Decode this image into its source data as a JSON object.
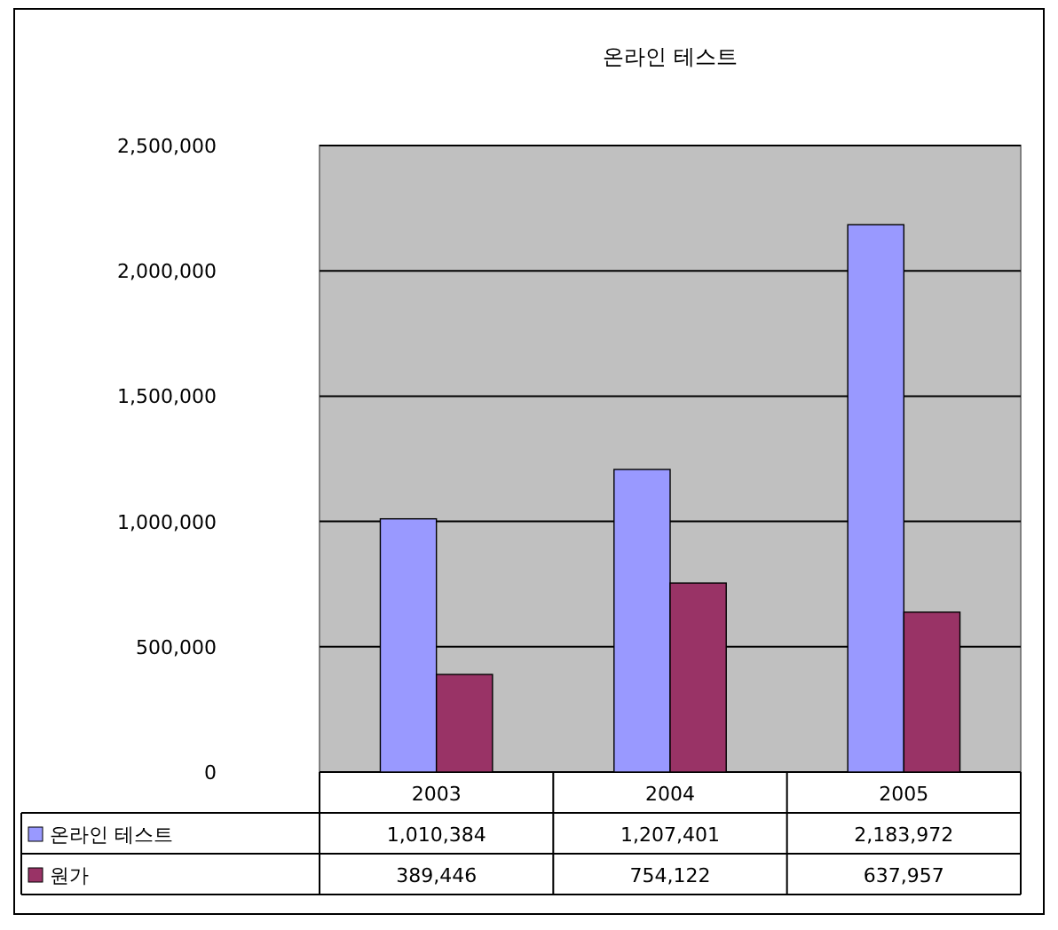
{
  "chart_data": {
    "type": "bar",
    "title": "온라인 테스트",
    "categories": [
      "2003",
      "2004",
      "2005"
    ],
    "series": [
      {
        "name": "온라인 테스트",
        "color": "#9999ff",
        "values": [
          1010384,
          1207401,
          2183972
        ],
        "value_labels": [
          "1,010,384",
          "1,207,401",
          "2,183,972"
        ]
      },
      {
        "name": "원가",
        "color": "#993366",
        "values": [
          389446,
          754122,
          637957
        ],
        "value_labels": [
          "389,446",
          "754,122",
          "637,957"
        ]
      }
    ],
    "ylim": [
      0,
      2500000
    ],
    "yticks": [
      {
        "value": 0,
        "label": "0"
      },
      {
        "value": 500000,
        "label": "500,000"
      },
      {
        "value": 1000000,
        "label": "1,000,000"
      },
      {
        "value": 1500000,
        "label": "1,500,000"
      },
      {
        "value": 2000000,
        "label": "2,000,000"
      },
      {
        "value": 2500000,
        "label": "2,500,000"
      }
    ],
    "grid": "y",
    "legend": "bottom"
  }
}
